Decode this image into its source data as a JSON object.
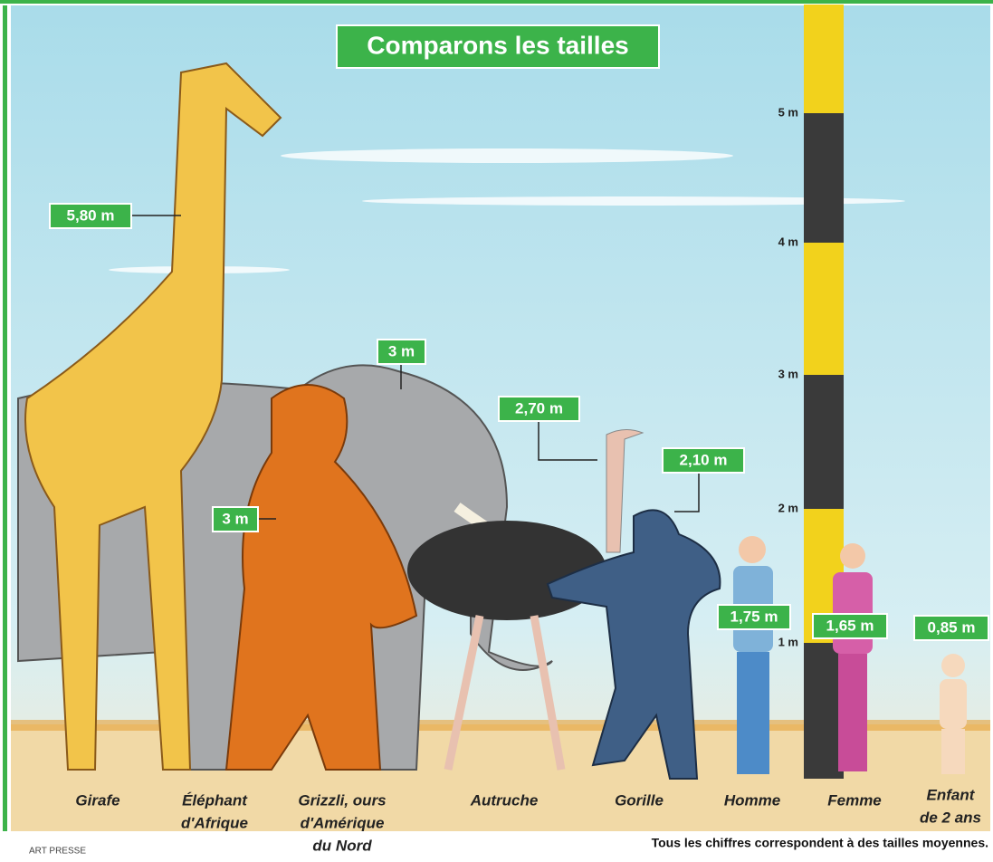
{
  "title": "Comparons les tailles",
  "items": [
    {
      "name": [
        "Girafe"
      ],
      "height": "5,80 m"
    },
    {
      "name": [
        "Éléphant",
        "d'Afrique"
      ],
      "height": "3 m"
    },
    {
      "name": [
        "Grizzli, ours",
        "d'Amérique",
        "du Nord"
      ],
      "height": "3 m"
    },
    {
      "name": [
        "Autruche"
      ],
      "height": "2,70 m"
    },
    {
      "name": [
        "Gorille"
      ],
      "height": "2,10 m"
    },
    {
      "name": [
        "Homme"
      ],
      "height": "1,75 m"
    },
    {
      "name": [
        "Femme"
      ],
      "height": "1,65 m"
    },
    {
      "name": [
        "Enfant",
        "de 2 ans"
      ],
      "height": "0,85 m"
    }
  ],
  "ruler": [
    "1 m",
    "2 m",
    "3 m",
    "4 m",
    "5 m"
  ],
  "footnote": "Tous les chiffres correspondent à des tailles moyennes.",
  "credit": "ART PRESSE"
}
